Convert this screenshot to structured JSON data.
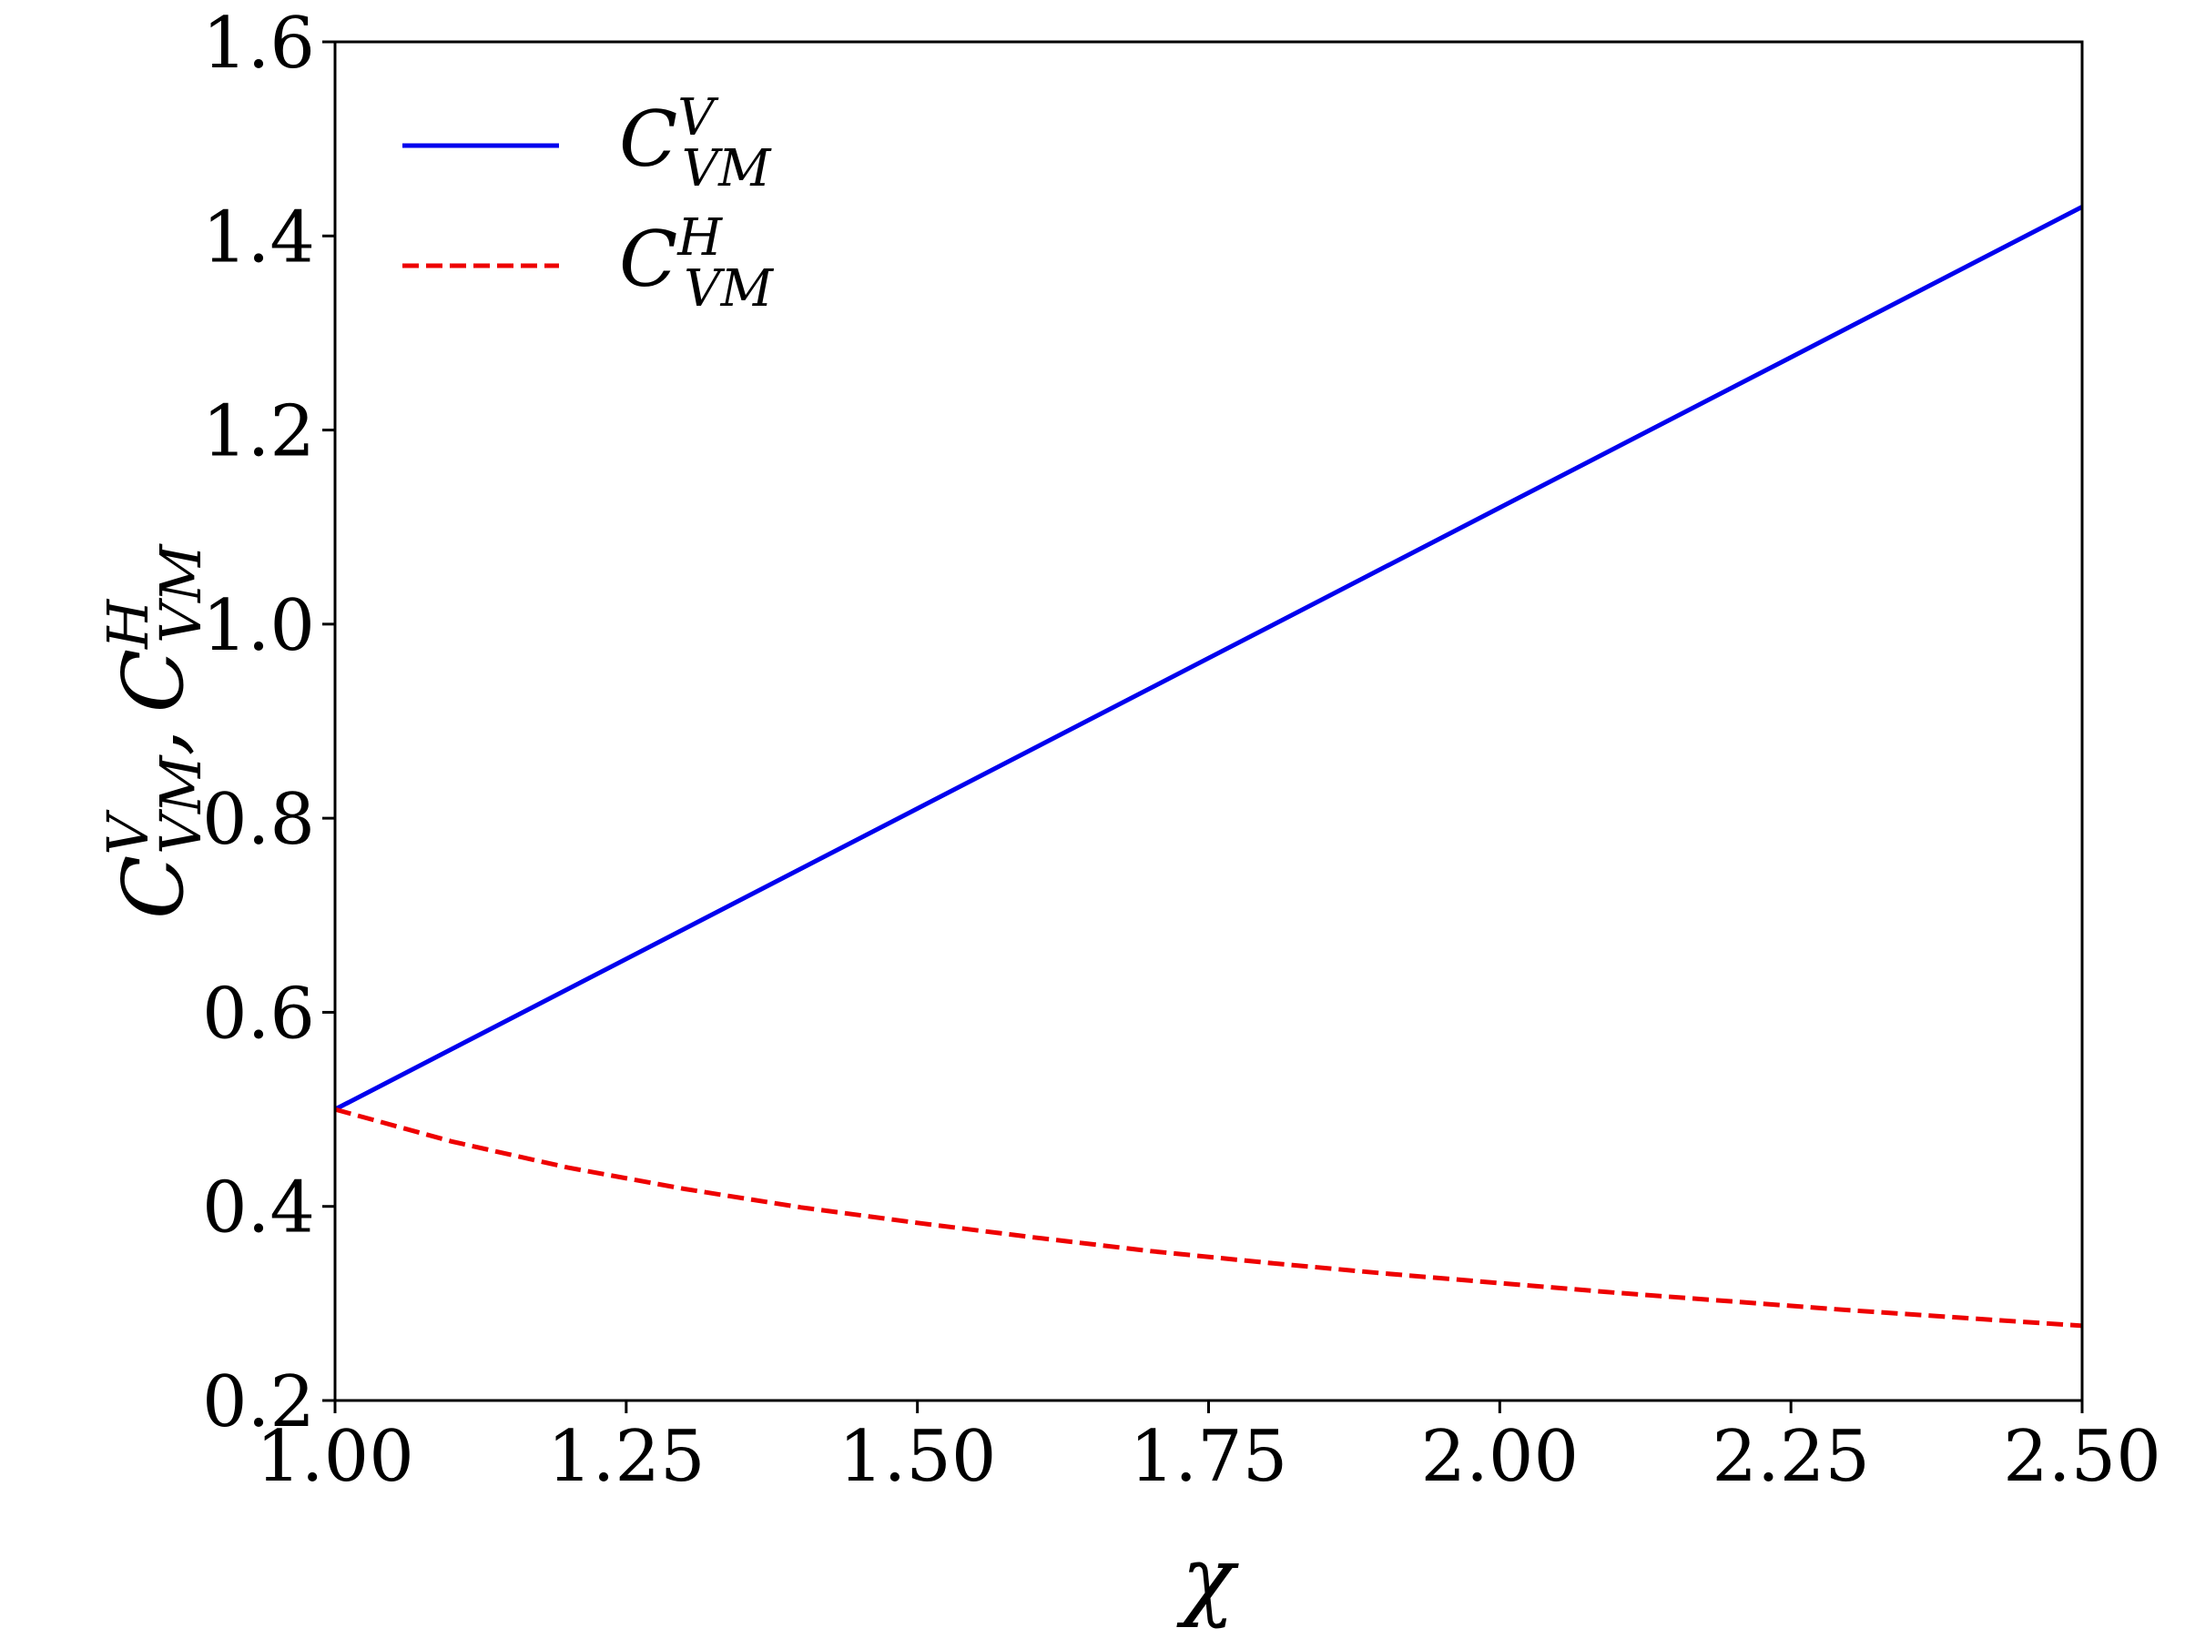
{
  "chart_data": {
    "type": "line",
    "xlabel": "χ",
    "ylabel": {
      "symbol": "C",
      "sub": "VM",
      "sup1": "V",
      "sup2": "H",
      "separator": ","
    },
    "xlim": [
      1.0,
      2.5
    ],
    "ylim": [
      0.2,
      1.6
    ],
    "xticks": [
      "1.00",
      "1.25",
      "1.50",
      "1.75",
      "2.00",
      "2.25",
      "2.50"
    ],
    "yticks": [
      "0.2",
      "0.4",
      "0.6",
      "0.8",
      "1.0",
      "1.2",
      "1.4",
      "1.6"
    ],
    "grid": false,
    "legend_position": "top-left",
    "series": [
      {
        "name": "C_VM^V",
        "legend": {
          "symbol": "C",
          "sup": "V",
          "sub": "VM"
        },
        "color": "#0000ee",
        "style": "solid",
        "x": [
          1.0,
          1.25,
          1.5,
          1.75,
          2.0,
          2.25,
          2.5
        ],
        "y": [
          0.5,
          0.655,
          0.81,
          0.965,
          1.12,
          1.275,
          1.43
        ]
      },
      {
        "name": "C_VM^H",
        "legend": {
          "symbol": "C",
          "sup": "H",
          "sub": "VM"
        },
        "color": "#ee0000",
        "style": "dashed",
        "x": [
          1.0,
          1.1,
          1.2,
          1.3,
          1.4,
          1.5,
          1.6,
          1.7,
          1.8,
          1.9,
          2.0,
          2.1,
          2.2,
          2.3,
          2.4,
          2.5
        ],
        "y": [
          0.5,
          0.467,
          0.44,
          0.418,
          0.399,
          0.383,
          0.368,
          0.354,
          0.342,
          0.331,
          0.321,
          0.311,
          0.302,
          0.293,
          0.285,
          0.277
        ]
      }
    ]
  }
}
